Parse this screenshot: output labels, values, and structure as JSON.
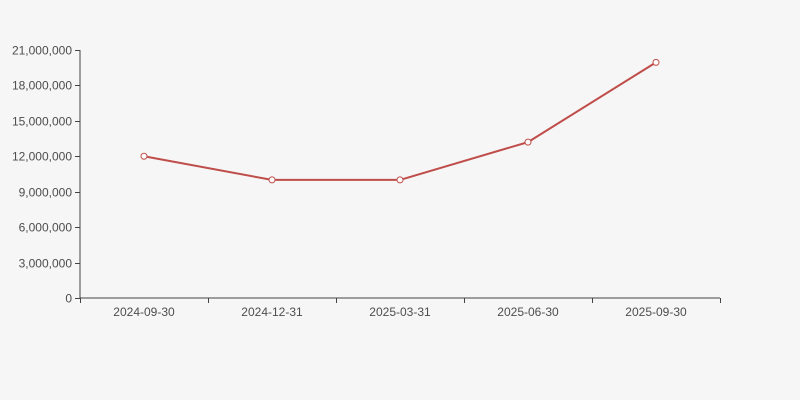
{
  "chart_data": {
    "type": "line",
    "title": "",
    "xlabel": "",
    "ylabel": "",
    "categories": [
      "2024-09-30",
      "2024-12-31",
      "2025-03-31",
      "2025-06-30",
      "2025-09-30"
    ],
    "series": [
      {
        "name": "value",
        "values": [
          12000000,
          10000000,
          10000000,
          13200000,
          19950000
        ]
      }
    ],
    "ylim": [
      0,
      21000000
    ],
    "y_tick_values": [
      0,
      3000000,
      6000000,
      9000000,
      12000000,
      15000000,
      18000000,
      21000000
    ],
    "y_tick_labels": [
      "0",
      "3,000,000",
      "6,000,000",
      "9,000,000",
      "12,000,000",
      "15,000,000",
      "18,000,000",
      "21,000,000"
    ],
    "grid": false,
    "legend_position": "none",
    "marker_shape": "hollow-circle",
    "colors": {
      "line": "#bf4d49",
      "marker_fill": "#ffffff",
      "axis": "#444444",
      "tick_label": "#4d4d4d",
      "background": "#f6f6f6"
    }
  }
}
